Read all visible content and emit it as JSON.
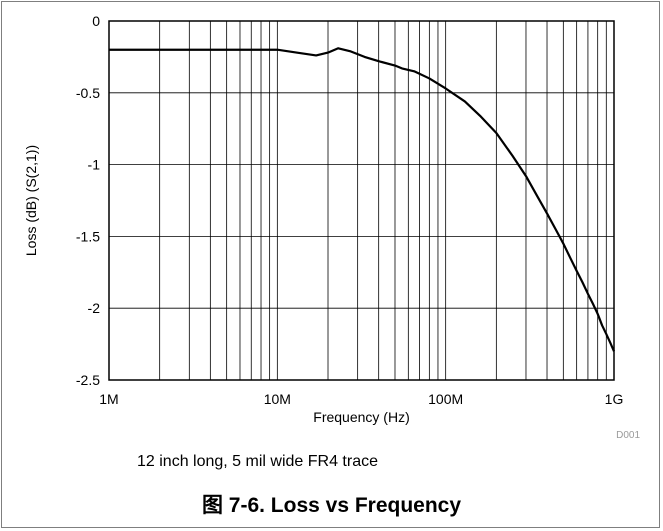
{
  "chart_data": {
    "type": "line",
    "title": "",
    "xlabel": "Frequency (Hz)",
    "ylabel": "Loss (dB) (S(2,1))",
    "xscale": "log",
    "xlim": [
      1000000,
      1000000000
    ],
    "ylim": [
      -2.5,
      0
    ],
    "x_tick_labels": [
      "1M",
      "10M",
      "100M",
      "1G"
    ],
    "y_tick_labels": [
      "0",
      "-0.5",
      "-1",
      "-1.5",
      "-2",
      "-2.5"
    ],
    "grid": true,
    "series": [
      {
        "color": "#000000",
        "x": [
          1000000,
          2000000,
          5000000,
          10000000,
          13000000,
          17000000,
          20000000,
          23000000,
          27000000,
          33000000,
          40000000,
          50000000,
          55000000,
          65000000,
          80000000,
          100000000,
          130000000,
          160000000,
          200000000,
          250000000,
          300000000,
          350000000,
          400000000,
          450000000,
          500000000,
          550000000,
          600000000,
          650000000,
          700000000,
          750000000,
          800000000,
          850000000,
          900000000,
          950000000,
          1000000000
        ],
        "y": [
          -0.2,
          -0.2,
          -0.2,
          -0.2,
          -0.22,
          -0.24,
          -0.22,
          -0.19,
          -0.21,
          -0.25,
          -0.28,
          -0.31,
          -0.33,
          -0.35,
          -0.4,
          -0.47,
          -0.56,
          -0.66,
          -0.78,
          -0.94,
          -1.08,
          -1.22,
          -1.34,
          -1.45,
          -1.55,
          -1.65,
          -1.74,
          -1.82,
          -1.9,
          -1.97,
          -2.04,
          -2.12,
          -2.18,
          -2.24,
          -2.3
        ]
      }
    ],
    "annotation": "D001"
  },
  "note": "12 inch long, 5 mil wide FR4 trace",
  "caption": "图 7-6. Loss vs Frequency"
}
